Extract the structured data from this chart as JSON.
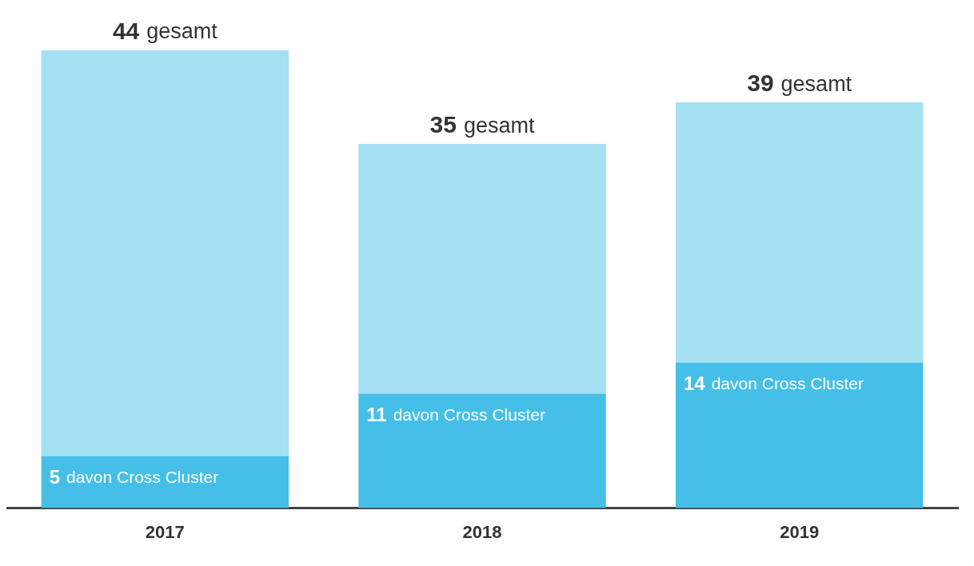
{
  "chart_data": {
    "type": "bar",
    "stacked": true,
    "categories": [
      "2017",
      "2018",
      "2019"
    ],
    "series": [
      {
        "name": "davon Cross Cluster",
        "color": "#45bfe7",
        "values": [
          5,
          11,
          14
        ],
        "value_labels": [
          "5",
          "11",
          "14"
        ]
      },
      {
        "color": "#a3e0f2",
        "values": [
          39,
          24,
          25
        ]
      }
    ],
    "totals": [
      "44 gesamt",
      "35 gesamt",
      "39 gesamt"
    ],
    "grid": false,
    "legend": false
  }
}
